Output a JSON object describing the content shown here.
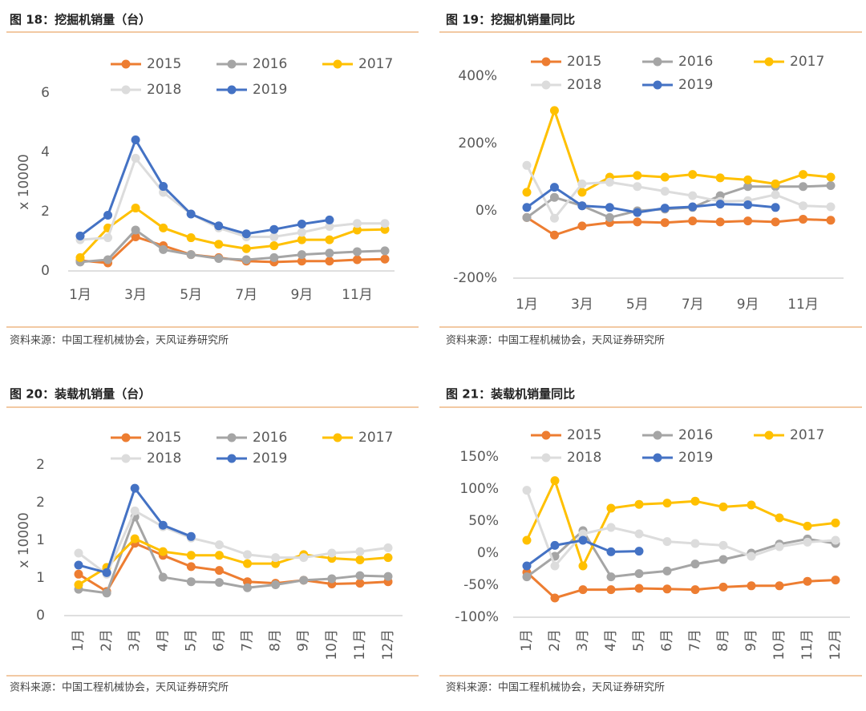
{
  "chart_data": [
    {
      "type": "line",
      "title": "图 18：挖掘机销量（台）",
      "ylabel": "x 10000",
      "source": "资料来源：中国工程机械协会，天风证券研究所",
      "categories": [
        "1月",
        null,
        "3月",
        null,
        "5月",
        null,
        "7月",
        null,
        "9月",
        null,
        "11月",
        null
      ],
      "ylim": [
        0,
        6
      ],
      "yticks": [
        0,
        2,
        4,
        6
      ],
      "series": [
        {
          "name": "2015",
          "color": "#ed7d31",
          "values": [
            0.35,
            0.27,
            1.15,
            0.85,
            0.55,
            0.45,
            0.33,
            0.3,
            0.33,
            0.33,
            0.38,
            0.4
          ]
        },
        {
          "name": "2016",
          "color": "#a5a5a5",
          "values": [
            0.3,
            0.38,
            1.38,
            0.72,
            0.55,
            0.42,
            0.38,
            0.45,
            0.55,
            0.6,
            0.65,
            0.68
          ]
        },
        {
          "name": "2017",
          "color": "#ffc000",
          "values": [
            0.45,
            1.45,
            2.12,
            1.45,
            1.12,
            0.9,
            0.75,
            0.85,
            1.05,
            1.05,
            1.38,
            1.4
          ]
        },
        {
          "name": "2018",
          "color": "#dcdcdc",
          "values": [
            1.05,
            1.12,
            3.8,
            2.65,
            1.92,
            1.45,
            1.15,
            1.15,
            1.3,
            1.5,
            1.6,
            1.6
          ]
        },
        {
          "name": "2019",
          "color": "#4472c4",
          "values": [
            1.18,
            1.88,
            4.42,
            2.85,
            1.92,
            1.52,
            1.25,
            1.4,
            1.58,
            1.72,
            null,
            null
          ]
        }
      ]
    },
    {
      "type": "line",
      "title": "图 19：挖掘机销量同比",
      "source": "资料来源：中国工程机械协会，天风证券研究所",
      "categories": [
        "1月",
        null,
        "3月",
        null,
        "5月",
        null,
        "7月",
        null,
        "9月",
        null,
        "11月",
        null
      ],
      "ylim": [
        -200,
        400
      ],
      "yticks": [
        {
          "value": -200,
          "label": "-200%"
        },
        {
          "value": 0,
          "label": "0%"
        },
        {
          "value": 200,
          "label": "200%"
        },
        {
          "value": 400,
          "label": "400%"
        }
      ],
      "series": [
        {
          "name": "2015",
          "color": "#ed7d31",
          "values": [
            -20,
            -72,
            -45,
            -35,
            -33,
            -35,
            -30,
            -33,
            -30,
            -33,
            -25,
            -28
          ]
        },
        {
          "name": "2016",
          "color": "#a5a5a5",
          "values": [
            -20,
            40,
            15,
            -20,
            0,
            5,
            10,
            45,
            72,
            72,
            72,
            75
          ]
        },
        {
          "name": "2017",
          "color": "#ffc000",
          "values": [
            55,
            298,
            55,
            100,
            105,
            100,
            108,
            98,
            92,
            80,
            108,
            100
          ]
        },
        {
          "name": "2018",
          "color": "#dcdcdc",
          "values": [
            135,
            -22,
            80,
            85,
            72,
            58,
            45,
            28,
            30,
            48,
            15,
            12
          ]
        },
        {
          "name": "2019",
          "color": "#4472c4",
          "values": [
            10,
            70,
            15,
            10,
            -5,
            8,
            12,
            20,
            18,
            10,
            null,
            null
          ]
        }
      ]
    },
    {
      "type": "line",
      "title": "图 20：装载机销量（台）",
      "ylabel": "x 10000",
      "source": "资料来源：中国工程机械协会，天风证券研究所",
      "categories": [
        "1月",
        "2月",
        "3月",
        "4月",
        "5月",
        "6月",
        "7月",
        "8月",
        "9月",
        "10月",
        "11月",
        "12月"
      ],
      "ylim": [
        0,
        2
      ],
      "yticks": [
        0,
        {
          "value": 0.5,
          "label": "1"
        },
        1,
        {
          "value": 1.5,
          "label": "2"
        },
        2
      ],
      "series": [
        {
          "name": "2015",
          "color": "#ed7d31",
          "values": [
            0.55,
            0.32,
            0.96,
            0.8,
            0.65,
            0.6,
            0.45,
            0.43,
            0.47,
            0.42,
            0.43,
            0.45
          ]
        },
        {
          "name": "2016",
          "color": "#a5a5a5",
          "values": [
            0.35,
            0.3,
            1.31,
            0.51,
            0.45,
            0.44,
            0.37,
            0.41,
            0.47,
            0.49,
            0.53,
            0.52
          ]
        },
        {
          "name": "2017",
          "color": "#ffc000",
          "values": [
            0.41,
            0.64,
            1.02,
            0.85,
            0.8,
            0.8,
            0.69,
            0.69,
            0.81,
            0.76,
            0.74,
            0.77
          ]
        },
        {
          "name": "2018",
          "color": "#dcdcdc",
          "values": [
            0.83,
            0.55,
            1.39,
            1.18,
            1.03,
            0.94,
            0.81,
            0.77,
            0.77,
            0.83,
            0.85,
            0.9
          ]
        },
        {
          "name": "2019",
          "color": "#4472c4",
          "values": [
            0.67,
            0.57,
            1.69,
            1.2,
            1.05,
            null,
            null,
            null,
            null,
            null,
            null,
            null
          ]
        }
      ]
    },
    {
      "type": "line",
      "title": "图 21：装载机销量同比",
      "source": "资料来源：中国工程机械协会，天风证券研究所",
      "categories": [
        "1月",
        "2月",
        "3月",
        "4月",
        "5月",
        "6月",
        "7月",
        "8月",
        "9月",
        "10月",
        "11月",
        "12月"
      ],
      "ylim": [
        -100,
        150
      ],
      "yticks": [
        {
          "value": -100,
          "label": "-100%"
        },
        {
          "value": -50,
          "label": "-50%"
        },
        {
          "value": 0,
          "label": "0%"
        },
        {
          "value": 50,
          "label": "50%"
        },
        {
          "value": 100,
          "label": "100%"
        },
        {
          "value": 150,
          "label": "150%"
        }
      ],
      "series": [
        {
          "name": "2015",
          "color": "#ed7d31",
          "values": [
            -30,
            -70,
            -57,
            -57,
            -55,
            -56,
            -57,
            -53,
            -51,
            -51,
            -44,
            -42
          ]
        },
        {
          "name": "2016",
          "color": "#a5a5a5",
          "values": [
            -37,
            -5,
            35,
            -37,
            -32,
            -28,
            -17,
            -10,
            0,
            14,
            22,
            15
          ]
        },
        {
          "name": "2017",
          "color": "#ffc000",
          "values": [
            20,
            113,
            -20,
            70,
            76,
            78,
            81,
            72,
            75,
            55,
            42,
            47
          ]
        },
        {
          "name": "2018",
          "color": "#dcdcdc",
          "values": [
            98,
            -20,
            30,
            40,
            30,
            18,
            15,
            12,
            -5,
            10,
            17,
            20
          ]
        },
        {
          "name": "2019",
          "color": "#4472c4",
          "values": [
            -20,
            12,
            20,
            2,
            3,
            null,
            null,
            null,
            null,
            null,
            null,
            null
          ]
        }
      ]
    }
  ]
}
